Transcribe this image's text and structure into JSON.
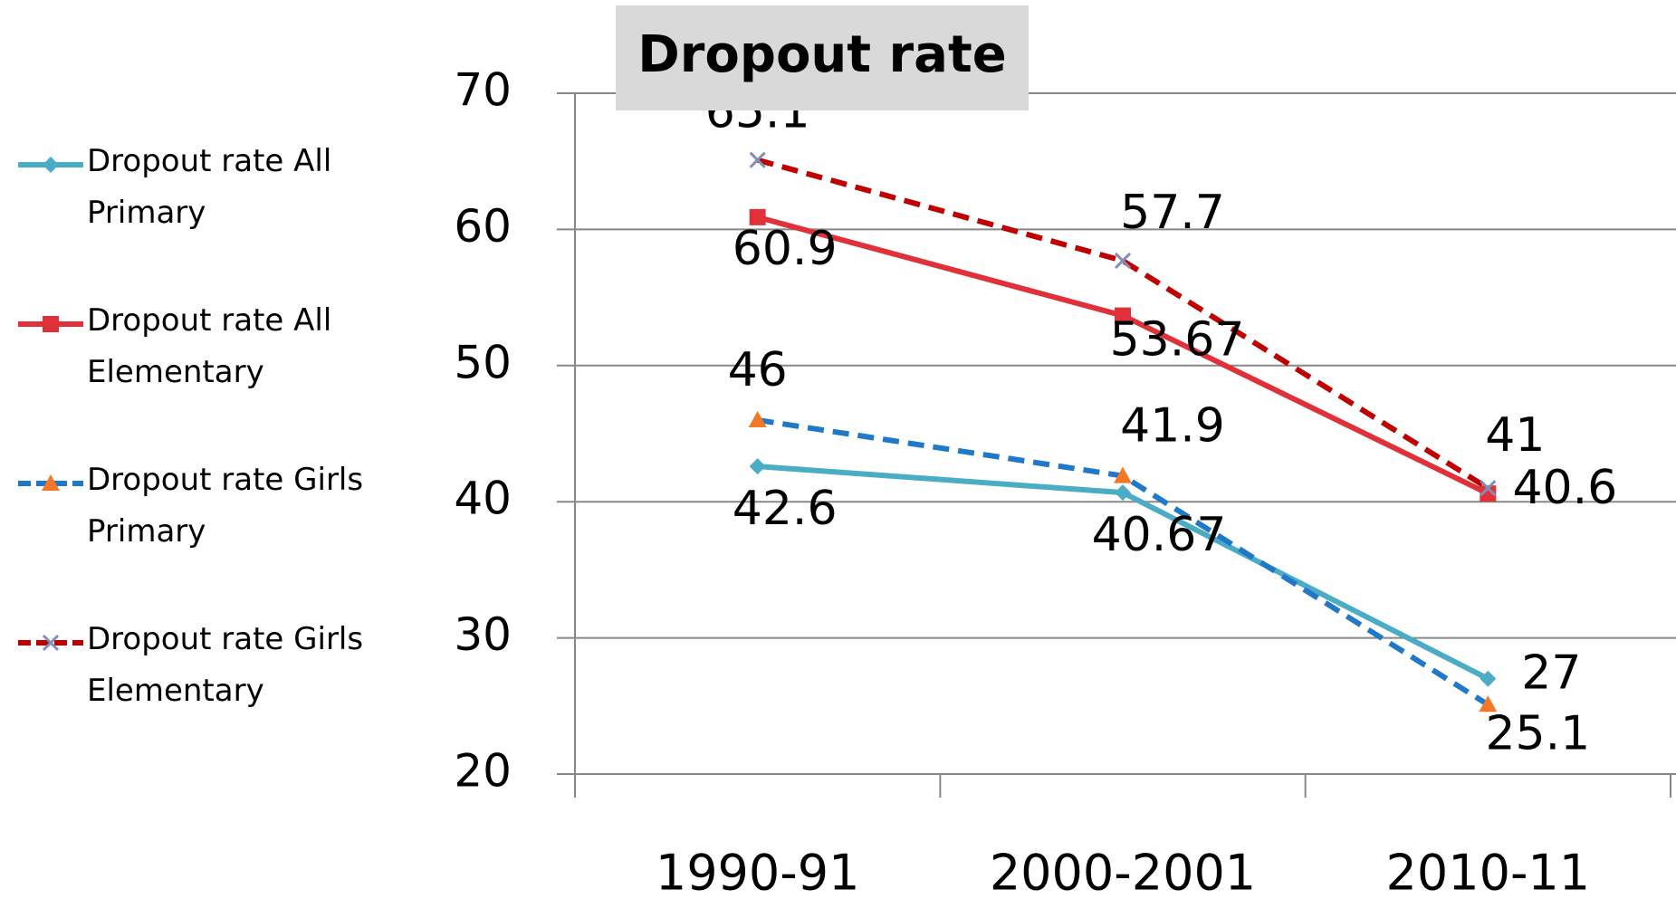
{
  "chart_data": {
    "type": "line",
    "title": "Dropout rate",
    "categories": [
      "1990-91",
      "2000-2001",
      "2010-11"
    ],
    "series": [
      {
        "name": "Dropout rate  All Primary",
        "color": "#4bacc6",
        "marker": "diamond",
        "marker_color": "#4bacc6",
        "dash": false,
        "values": [
          42.6,
          40.67,
          27
        ]
      },
      {
        "name": "Dropout rate  All Elementary",
        "color": "#e0303a",
        "marker": "square",
        "marker_color": "#e0303a",
        "dash": false,
        "values": [
          60.9,
          53.67,
          40.6
        ]
      },
      {
        "name": "Dropout rate  Girls Primary",
        "color": "#1f78c8",
        "marker": "triangle",
        "marker_color": "#f07828",
        "dash": true,
        "values": [
          46,
          41.9,
          25.1
        ]
      },
      {
        "name": "Dropout rate  Girls Elementary",
        "color": "#c00000",
        "marker": "x",
        "marker_color": "#7f8fb8",
        "dash": true,
        "values": [
          65.1,
          57.7,
          41
        ]
      }
    ],
    "ylim": [
      20,
      70
    ],
    "yticks": [
      20,
      30,
      40,
      50,
      60,
      70
    ],
    "grid": true
  }
}
